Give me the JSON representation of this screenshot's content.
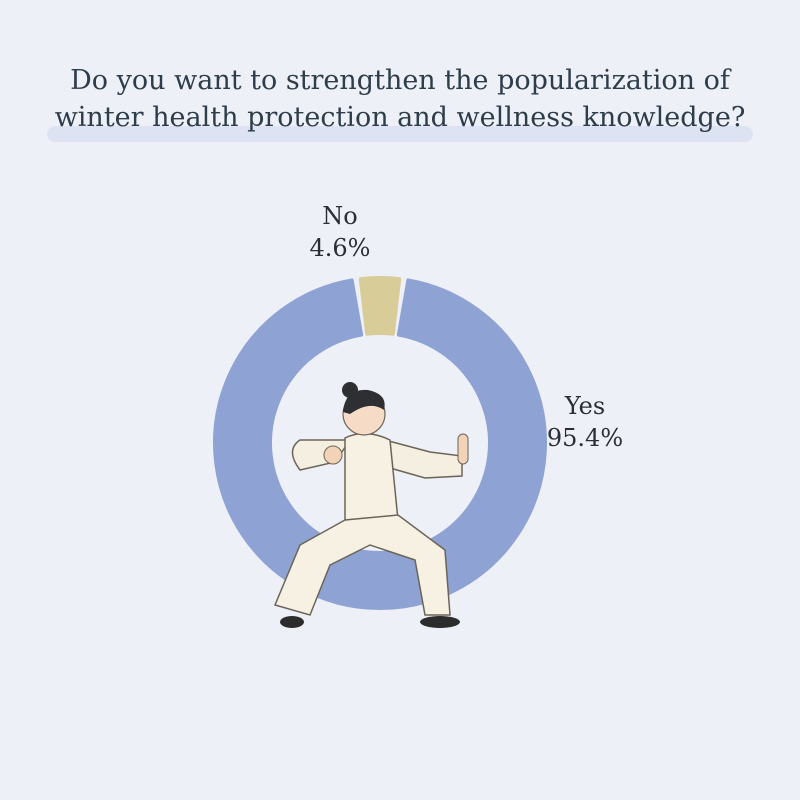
{
  "title_lines": [
    "Do you want to strengthen the popularization of",
    "winter health protection and wellness knowledge?"
  ],
  "chart_data": {
    "type": "pie",
    "variant": "donut",
    "title": "Do you want to strengthen the popularization of winter health protection and wellness knowledge?",
    "categories": [
      "No",
      "Yes"
    ],
    "values": [
      4.6,
      95.4
    ],
    "value_labels": [
      "4.6%",
      "95.4%"
    ],
    "colors": [
      "#d8cc98",
      "#8ea2d3"
    ],
    "legend": "none"
  },
  "background": "#eef0f8"
}
